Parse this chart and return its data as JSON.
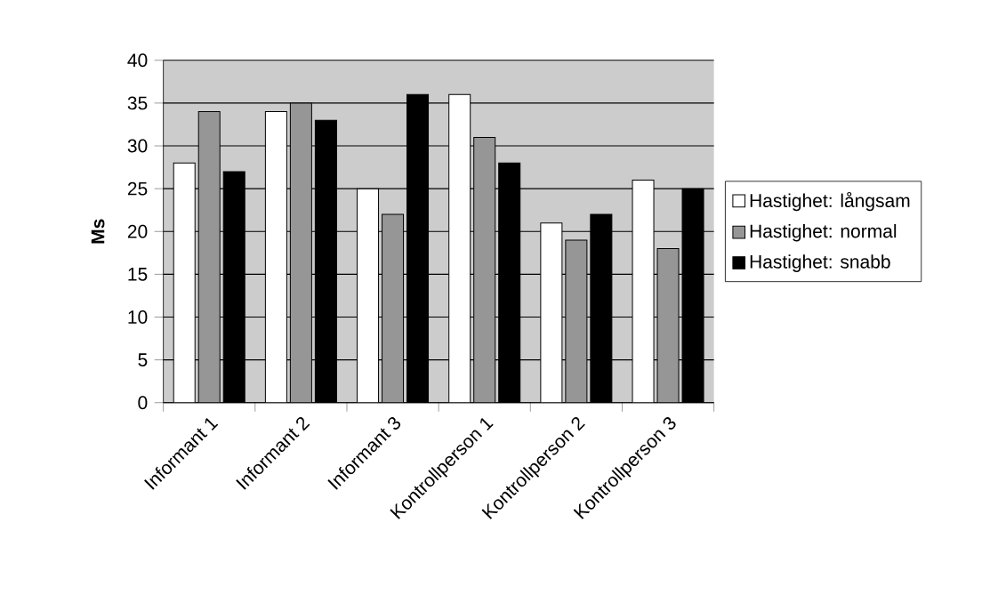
{
  "chart_data": {
    "type": "bar",
    "ylabel": "Ms",
    "categories": [
      "Informant 1",
      "Informant 2",
      "Informant 3",
      "Kontrollperson 1",
      "Kontrollperson 2",
      "Kontrollperson 3"
    ],
    "series": [
      {
        "name": "Hastighet: långsam",
        "color": "#ffffff",
        "values": [
          28,
          34,
          25,
          36,
          21,
          26
        ]
      },
      {
        "name": "Hastighet: normal",
        "color": "#969696",
        "values": [
          34,
          35,
          22,
          31,
          19,
          18
        ]
      },
      {
        "name": "Hastighet: snabb",
        "color": "#000000",
        "values": [
          27,
          33,
          36,
          28,
          22,
          25
        ]
      }
    ],
    "ylim": [
      0,
      40
    ],
    "yticks": [
      0,
      5,
      10,
      15,
      20,
      25,
      30,
      35,
      40
    ],
    "grid": "y",
    "legend": "right"
  }
}
